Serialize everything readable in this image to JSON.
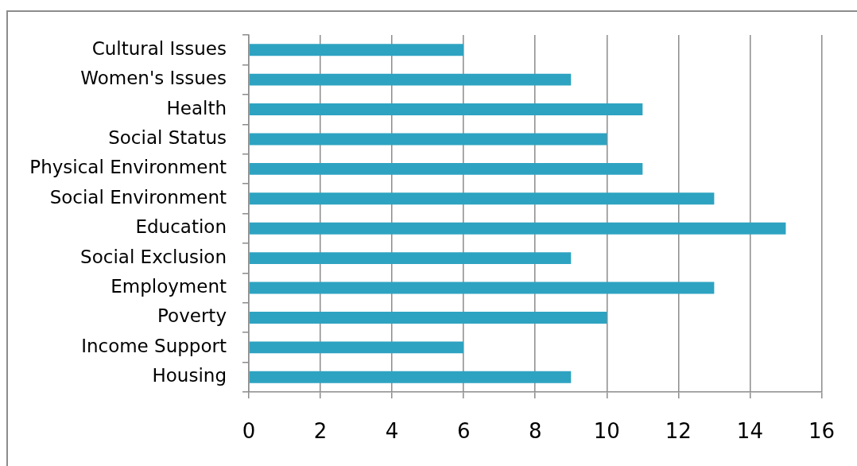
{
  "chart_data": {
    "type": "bar",
    "orientation": "horizontal",
    "categories": [
      "Cultural Issues",
      "Women's Issues",
      "Health",
      "Social Status",
      "Physical Environment",
      "Social Environment",
      "Education",
      "Social Exclusion",
      "Employment",
      "Poverty",
      "Income Support",
      "Housing"
    ],
    "values": [
      6,
      9,
      11,
      10,
      11,
      13,
      15,
      9,
      13,
      10,
      6,
      9
    ],
    "color": "#2ea3c1",
    "xlim": [
      0,
      16
    ],
    "xticks": [
      0,
      2,
      4,
      6,
      8,
      10,
      12,
      14,
      16
    ],
    "grid": "x"
  }
}
